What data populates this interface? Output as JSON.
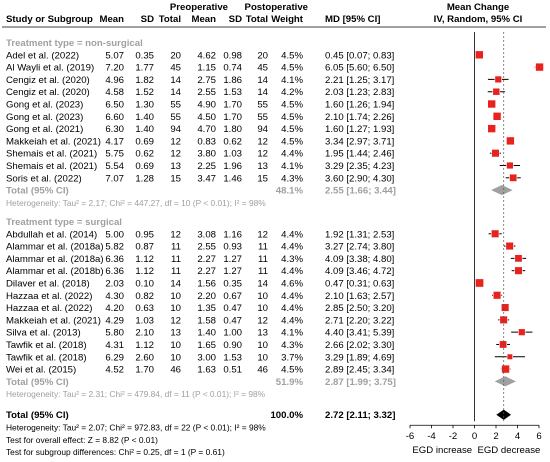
{
  "chart_data": {
    "type": "forest",
    "headers": {
      "study": "Study or Subgroup",
      "pre_group": "Preoperative",
      "post_group": "Postoperative",
      "mean": "Mean",
      "sd": "SD",
      "total": "Total",
      "weight": "Weight",
      "md": "MD [95% CI]",
      "plot_title": "Mean Change",
      "plot_subtitle": "IV, Random, 95% CI"
    },
    "x_axis": {
      "xlim": [
        -6,
        6
      ],
      "ticks": [
        -6,
        -4,
        -2,
        0,
        2,
        4,
        6
      ],
      "tick_labels": [
        "-6",
        "-4",
        "-2",
        "0",
        "2",
        "4",
        "6"
      ],
      "left_label": "EGD increase",
      "right_label": "EGD decrease"
    },
    "colors": {
      "study_square": "#e8231f",
      "ci_line": "#000000",
      "diamond": "#000000",
      "subtotal_text": "#a0a0a0"
    },
    "subgroups": [
      {
        "label": "Treatment type = non-surgical",
        "studies": [
          {
            "study": "Adel et al. (2022)",
            "pre_mean": "5.07",
            "pre_sd": "0.35",
            "pre_n": "20",
            "post_mean": "4.62",
            "post_sd": "0.98",
            "post_n": "20",
            "weight": "4.5%",
            "md_text": "0.45 [0.07; 0.83]",
            "md": 0.45,
            "lo": 0.07,
            "hi": 0.83
          },
          {
            "study": "Al Wayli et al. (2019)",
            "pre_mean": "7.20",
            "pre_sd": "1.77",
            "pre_n": "45",
            "post_mean": "1.15",
            "post_sd": "0.74",
            "post_n": "45",
            "weight": "4.5%",
            "md_text": "6.05 [5.60; 6.50]",
            "md": 6.05,
            "lo": 5.6,
            "hi": 6.5
          },
          {
            "study": "Cengiz et al. (2020)",
            "pre_mean": "4.96",
            "pre_sd": "1.82",
            "pre_n": "14",
            "post_mean": "2.75",
            "post_sd": "1.86",
            "post_n": "14",
            "weight": "4.1%",
            "md_text": "2.21 [1.25; 3.17]",
            "md": 2.21,
            "lo": 1.25,
            "hi": 3.17
          },
          {
            "study": "Cengiz et al. (2020)",
            "pre_mean": "4.58",
            "pre_sd": "1.52",
            "pre_n": "14",
            "post_mean": "2.55",
            "post_sd": "1.53",
            "post_n": "14",
            "weight": "4.2%",
            "md_text": "2.03 [1.23; 2.83]",
            "md": 2.03,
            "lo": 1.23,
            "hi": 2.83
          },
          {
            "study": "Gong et al. (2023)",
            "pre_mean": "6.50",
            "pre_sd": "1.30",
            "pre_n": "55",
            "post_mean": "4.90",
            "post_sd": "1.70",
            "post_n": "55",
            "weight": "4.5%",
            "md_text": "1.60 [1.26; 1.94]",
            "md": 1.6,
            "lo": 1.26,
            "hi": 1.94
          },
          {
            "study": "Gong et al. (2023)",
            "pre_mean": "6.60",
            "pre_sd": "1.40",
            "pre_n": "55",
            "post_mean": "4.50",
            "post_sd": "1.70",
            "post_n": "55",
            "weight": "4.5%",
            "md_text": "2.10 [1.74; 2.26]",
            "md": 2.1,
            "lo": 1.74,
            "hi": 2.26
          },
          {
            "study": "Gong et al. (2021)",
            "pre_mean": "6.30",
            "pre_sd": "1.40",
            "pre_n": "94",
            "post_mean": "4.70",
            "post_sd": "1.80",
            "post_n": "94",
            "weight": "4.5%",
            "md_text": "1.60 [1.27; 1.93]",
            "md": 1.6,
            "lo": 1.27,
            "hi": 1.93
          },
          {
            "study": "Makkeiah et al. (2021)",
            "pre_mean": "4.17",
            "pre_sd": "0.69",
            "pre_n": "12",
            "post_mean": "0.83",
            "post_sd": "0.62",
            "post_n": "12",
            "weight": "4.5%",
            "md_text": "3.34 [2.97; 3.71]",
            "md": 3.34,
            "lo": 2.97,
            "hi": 3.71
          },
          {
            "study": "Shemais et al. (2021)",
            "pre_mean": "5.75",
            "pre_sd": "0.62",
            "pre_n": "12",
            "post_mean": "3.80",
            "post_sd": "1.03",
            "post_n": "12",
            "weight": "4.4%",
            "md_text": "1.95 [1.44; 2.46]",
            "md": 1.95,
            "lo": 1.44,
            "hi": 2.46
          },
          {
            "study": "Shemais et al. (2021)",
            "pre_mean": "5.54",
            "pre_sd": "0.69",
            "pre_n": "13",
            "post_mean": "2.25",
            "post_sd": "1.96",
            "post_n": "13",
            "weight": "4.1%",
            "md_text": "3.29 [2.35; 4.23]",
            "md": 3.29,
            "lo": 2.35,
            "hi": 4.23
          },
          {
            "study": "Soris et al. (2022)",
            "pre_mean": "7.07",
            "pre_sd": "1.28",
            "pre_n": "15",
            "post_mean": "3.47",
            "post_sd": "1.46",
            "post_n": "15",
            "weight": "4.3%",
            "md_text": "3.60 [2.90; 4.30]",
            "md": 3.6,
            "lo": 2.9,
            "hi": 4.3
          }
        ],
        "total": {
          "label": "Total (95% CI)",
          "weight": "48.1%",
          "md_text": "2.55 [1.66; 3.44]",
          "md": 2.55,
          "lo": 1.66,
          "hi": 3.44
        },
        "heterogeneity": "Heterogeneity: Tau² = 2.17; Chi² = 447.27, df = 10 (P < 0.01); I² = 98%"
      },
      {
        "label": "Treatment type = surgical",
        "studies": [
          {
            "study": "Abdullah et al. (2014)",
            "pre_mean": "5.00",
            "pre_sd": "0.95",
            "pre_n": "12",
            "post_mean": "3.08",
            "post_sd": "1.16",
            "post_n": "12",
            "weight": "4.4%",
            "md_text": "1.92 [1.31; 2.53]",
            "md": 1.92,
            "lo": 1.31,
            "hi": 2.53
          },
          {
            "study": "Alammar et al. (2018a)",
            "pre_mean": "5.82",
            "pre_sd": "0.87",
            "pre_n": "11",
            "post_mean": "2.55",
            "post_sd": "0.93",
            "post_n": "11",
            "weight": "4.4%",
            "md_text": "3.27 [2.74; 3.80]",
            "md": 3.27,
            "lo": 2.74,
            "hi": 3.8
          },
          {
            "study": "Alammar et al. (2018a)",
            "pre_mean": "6.36",
            "pre_sd": "1.12",
            "pre_n": "11",
            "post_mean": "2.27",
            "post_sd": "1.27",
            "post_n": "11",
            "weight": "4.3%",
            "md_text": "4.09 [3.38; 4.80]",
            "md": 4.09,
            "lo": 3.38,
            "hi": 4.8
          },
          {
            "study": "Alammar et al. (2018b)",
            "pre_mean": "6.36",
            "pre_sd": "1.12",
            "pre_n": "11",
            "post_mean": "2.27",
            "post_sd": "1.27",
            "post_n": "11",
            "weight": "4.4%",
            "md_text": "4.09 [3.46; 4.72]",
            "md": 4.09,
            "lo": 3.46,
            "hi": 4.72
          },
          {
            "study": "Dilaver et al. (2018)",
            "pre_mean": "2.03",
            "pre_sd": "0.10",
            "pre_n": "14",
            "post_mean": "1.56",
            "post_sd": "0.35",
            "post_n": "14",
            "weight": "4.6%",
            "md_text": "0.47 [0.31; 0.63]",
            "md": 0.47,
            "lo": 0.31,
            "hi": 0.63
          },
          {
            "study": "Hazzaa et al. (2022)",
            "pre_mean": "4.30",
            "pre_sd": "0.82",
            "pre_n": "10",
            "post_mean": "2.20",
            "post_sd": "0.67",
            "post_n": "10",
            "weight": "4.4%",
            "md_text": "2.10 [1.63; 2.57]",
            "md": 2.1,
            "lo": 1.63,
            "hi": 2.57
          },
          {
            "study": "Hazzaa et al. (2022)",
            "pre_mean": "4.20",
            "pre_sd": "0.63",
            "pre_n": "10",
            "post_mean": "1.35",
            "post_sd": "0.47",
            "post_n": "10",
            "weight": "4.4%",
            "md_text": "2.85 [2.50; 3.20]",
            "md": 2.85,
            "lo": 2.5,
            "hi": 3.2
          },
          {
            "study": "Makkeiah et al. (2021)",
            "pre_mean": "4.29",
            "pre_sd": "1.03",
            "pre_n": "12",
            "post_mean": "1.58",
            "post_sd": "0.47",
            "post_n": "12",
            "weight": "4.4%",
            "md_text": "2.71 [2.20; 3.22]",
            "md": 2.71,
            "lo": 2.2,
            "hi": 3.22
          },
          {
            "study": "Silva et al. (2013)",
            "pre_mean": "5.80",
            "pre_sd": "2.10",
            "pre_n": "13",
            "post_mean": "1.40",
            "post_sd": "1.00",
            "post_n": "13",
            "weight": "4.1%",
            "md_text": "4.40 [3.41; 5.39]",
            "md": 4.4,
            "lo": 3.41,
            "hi": 5.39
          },
          {
            "study": "Tawfik et al. (2018)",
            "pre_mean": "4.31",
            "pre_sd": "1.12",
            "pre_n": "10",
            "post_mean": "1.65",
            "post_sd": "0.90",
            "post_n": "10",
            "weight": "4.3%",
            "md_text": "2.66 [2.02; 3.30]",
            "md": 2.66,
            "lo": 2.02,
            "hi": 3.3
          },
          {
            "study": "Tawfik et al. (2018)",
            "pre_mean": "6.29",
            "pre_sd": "2.60",
            "pre_n": "10",
            "post_mean": "3.00",
            "post_sd": "1.53",
            "post_n": "10",
            "weight": "3.7%",
            "md_text": "3.29 [1.89; 4.69]",
            "md": 3.29,
            "lo": 1.89,
            "hi": 4.69
          },
          {
            "study": "Wei et al. (2015)",
            "pre_mean": "4.52",
            "pre_sd": "1.70",
            "pre_n": "46",
            "post_mean": "1.63",
            "post_sd": "0.51",
            "post_n": "46",
            "weight": "4.5%",
            "md_text": "2.89 [2.45; 3.34]",
            "md": 2.89,
            "lo": 2.45,
            "hi": 3.34
          }
        ],
        "total": {
          "label": "Total (95% CI)",
          "weight": "51.9%",
          "md_text": "2.87 [1.99; 3.75]",
          "md": 2.87,
          "lo": 1.99,
          "hi": 3.75
        },
        "heterogeneity": "Heterogeneity: Tau² = 2.31; Chi² = 479.84, df = 11 (P < 0.01); I² = 98%"
      }
    ],
    "overall": {
      "label": "Total (95% CI)",
      "weight": "100.0%",
      "md_text": "2.72 [2.11; 3.32]",
      "md": 2.72,
      "lo": 2.11,
      "hi": 3.32,
      "footnotes": [
        "Heterogeneity: Tau² = 2.07; Chi² = 972.83, df = 22 (P < 0.01); I² = 98%",
        "Test for overall effect: Z = 8.82 (P < 0.01)",
        "Test for subgroup differences: Chi² = 0.25, df = 1 (P = 0.61)"
      ]
    }
  }
}
